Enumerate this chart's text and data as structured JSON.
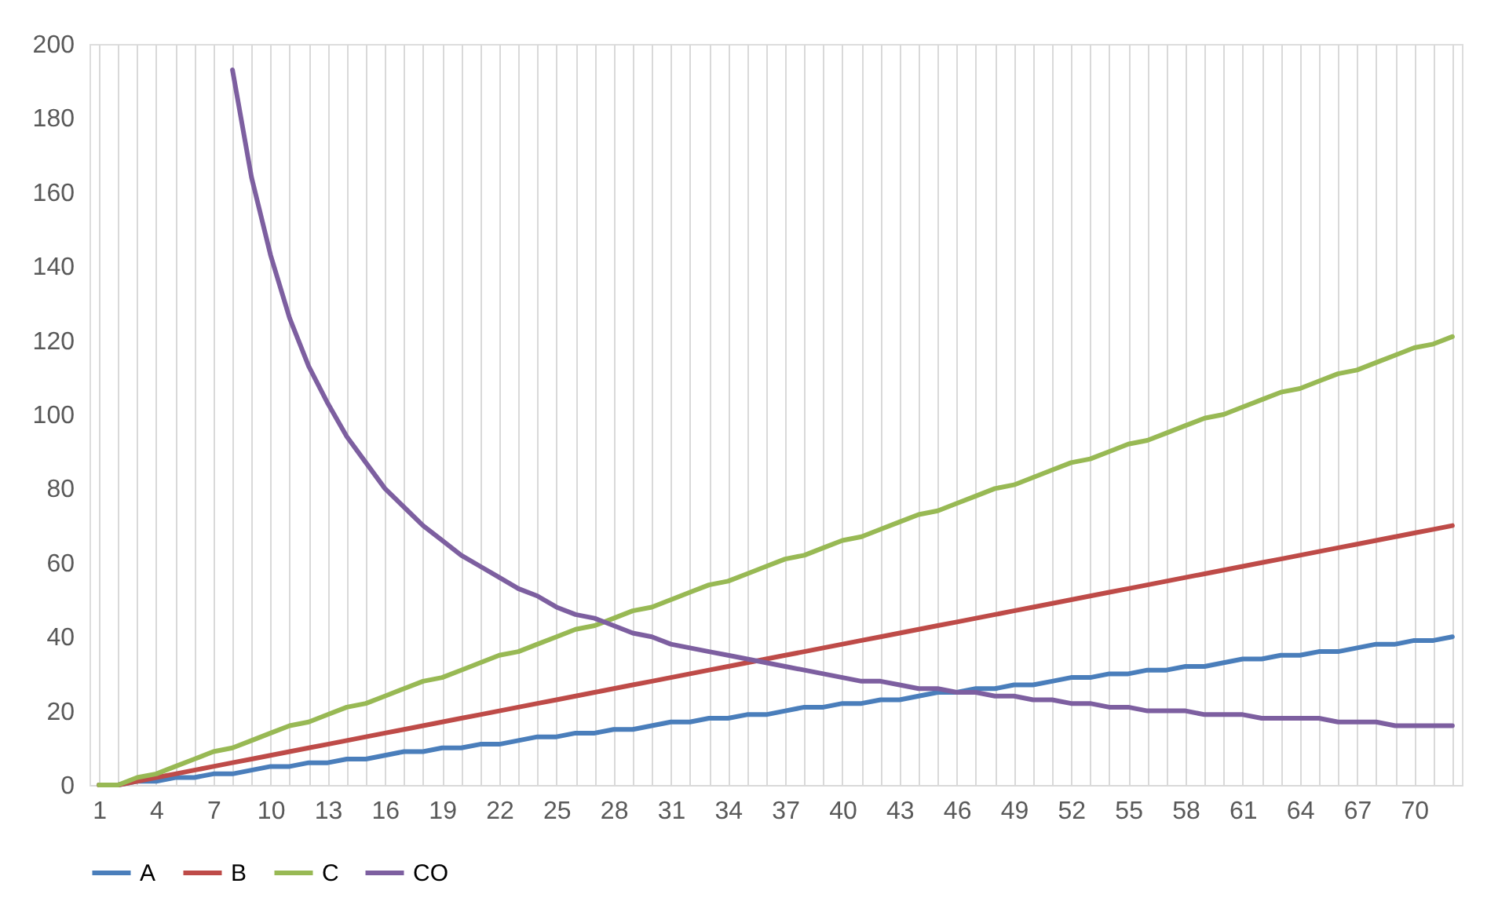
{
  "chart_data": {
    "type": "line",
    "categories": [
      "1",
      null,
      null,
      "4",
      null,
      null,
      "7",
      null,
      null,
      "10",
      null,
      null,
      "13",
      null,
      null,
      "16",
      null,
      null,
      "19",
      null,
      null,
      "22",
      null,
      null,
      "25",
      null,
      null,
      "28",
      null,
      null,
      "31",
      null,
      null,
      "34",
      null,
      null,
      "37",
      null,
      null,
      "40",
      null,
      null,
      "43",
      null,
      null,
      "46",
      null,
      null,
      "49",
      null,
      null,
      "52",
      null,
      null,
      "55",
      null,
      null,
      "58",
      null,
      null,
      "61",
      null,
      null,
      "64",
      null,
      null,
      "67",
      null,
      null,
      "70",
      null,
      null
    ],
    "series": [
      {
        "name": "A",
        "color": "#4a7ebb",
        "values": [
          0,
          0,
          1,
          1,
          2,
          2,
          3,
          3,
          4,
          5,
          5,
          6,
          6,
          7,
          7,
          8,
          9,
          9,
          10,
          10,
          11,
          11,
          12,
          13,
          13,
          14,
          14,
          15,
          15,
          16,
          17,
          17,
          18,
          18,
          19,
          19,
          20,
          21,
          21,
          22,
          22,
          23,
          23,
          24,
          25,
          25,
          26,
          26,
          27,
          27,
          28,
          29,
          29,
          30,
          30,
          31,
          31,
          32,
          32,
          33,
          34,
          34,
          35,
          35,
          36,
          36,
          37,
          38,
          38,
          39,
          39,
          40
        ]
      },
      {
        "name": "B",
        "color": "#be4b48",
        "values": [
          0,
          0,
          1,
          2,
          3,
          4,
          5,
          6,
          7,
          8,
          9,
          10,
          11,
          12,
          13,
          14,
          15,
          16,
          17,
          18,
          19,
          20,
          21,
          22,
          23,
          24,
          25,
          26,
          27,
          28,
          29,
          30,
          31,
          32,
          33,
          34,
          35,
          36,
          37,
          38,
          39,
          40,
          41,
          42,
          43,
          44,
          45,
          46,
          47,
          48,
          49,
          50,
          51,
          52,
          53,
          54,
          55,
          56,
          57,
          58,
          59,
          60,
          61,
          62,
          63,
          64,
          65,
          66,
          67,
          68,
          69,
          70
        ]
      },
      {
        "name": "C",
        "color": "#98b954",
        "values": [
          0,
          0,
          2,
          3,
          5,
          7,
          9,
          10,
          12,
          14,
          16,
          17,
          19,
          21,
          22,
          24,
          26,
          28,
          29,
          31,
          33,
          35,
          36,
          38,
          40,
          42,
          43,
          45,
          47,
          48,
          50,
          52,
          54,
          55,
          57,
          59,
          61,
          62,
          64,
          66,
          67,
          69,
          71,
          73,
          74,
          76,
          78,
          80,
          81,
          83,
          85,
          87,
          88,
          90,
          92,
          93,
          95,
          97,
          99,
          100,
          102,
          104,
          106,
          107,
          109,
          111,
          112,
          114,
          116,
          118,
          119,
          121
        ]
      },
      {
        "name": "CO",
        "color": "#7d5fa0",
        "values": [
          null,
          null,
          null,
          null,
          null,
          null,
          null,
          193,
          164,
          143,
          126,
          113,
          103,
          94,
          87,
          80,
          75,
          70,
          66,
          62,
          59,
          56,
          53,
          51,
          48,
          46,
          45,
          43,
          41,
          40,
          38,
          37,
          36,
          35,
          34,
          33,
          32,
          31,
          30,
          29,
          28,
          28,
          27,
          26,
          26,
          25,
          25,
          24,
          24,
          23,
          23,
          22,
          22,
          21,
          21,
          20,
          20,
          20,
          19,
          19,
          19,
          18,
          18,
          18,
          18,
          17,
          17,
          17,
          16,
          16,
          16,
          16
        ]
      }
    ],
    "ylim": [
      0,
      200
    ],
    "yticks": [
      0,
      20,
      40,
      60,
      80,
      100,
      120,
      140,
      160,
      180,
      200
    ],
    "grid": "x",
    "legend": "bottom"
  }
}
